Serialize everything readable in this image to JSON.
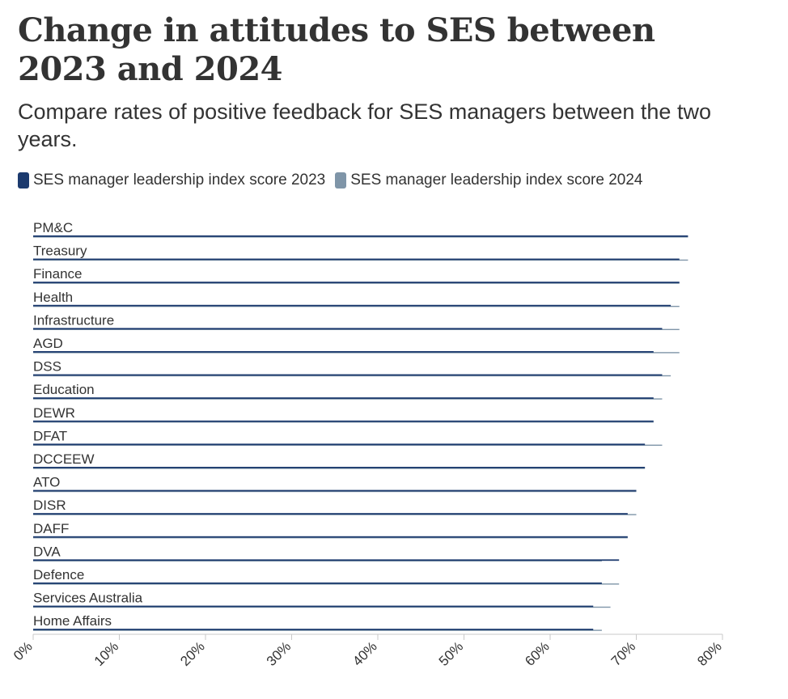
{
  "title": "Change in attitudes to SES between 2023 and 2024",
  "subtitle": "Compare rates of positive feedback for SES managers between the two years.",
  "colors": {
    "y2023": "#1c3a6e",
    "y2024": "#7f95a8",
    "axis": "#c8c8c8"
  },
  "chart_data": {
    "type": "bar",
    "orientation": "horizontal",
    "categories": [
      "PM&C",
      "Treasury",
      "Finance",
      "Health",
      "Infrastructure",
      "AGD",
      "DSS",
      "Education",
      "DEWR",
      "DFAT",
      "DCCEEW",
      "ATO",
      "DISR",
      "DAFF",
      "DVA",
      "Defence",
      "Services Australia",
      "Home Affairs"
    ],
    "series": [
      {
        "name": "SES manager leadership index score 2023",
        "values": [
          76,
          75,
          75,
          74,
          73,
          72,
          73,
          72,
          72,
          71,
          71,
          70,
          69,
          69,
          68,
          66,
          65,
          65
        ]
      },
      {
        "name": "SES manager leadership index score 2024",
        "values": [
          76,
          76,
          75,
          75,
          75,
          75,
          74,
          73,
          72,
          73,
          71,
          70,
          70,
          69,
          66,
          68,
          67,
          66
        ]
      }
    ],
    "xlim": [
      0,
      80
    ],
    "xticks": [
      "0%",
      "10%",
      "20%",
      "30%",
      "40%",
      "50%",
      "60%",
      "70%",
      "80%"
    ],
    "legend": "top-left",
    "grid": false
  }
}
